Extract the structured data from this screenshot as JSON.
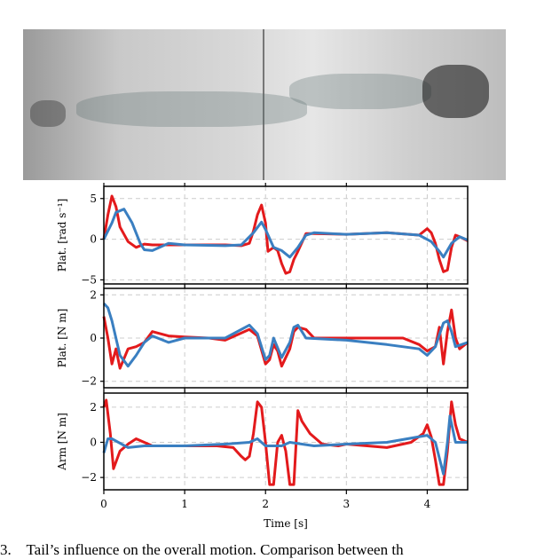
{
  "figure": {
    "photo_alt": "composite image of robot motion",
    "caption_number": "3.",
    "caption_text": "Tail’s influence on the overall motion. Comparison between th"
  },
  "colors": {
    "red": "#e31a1c",
    "blue": "#3a7fc1"
  },
  "chart_data": [
    {
      "type": "line",
      "ylabel": "Plat. [rad s⁻¹]",
      "xlim": [
        0,
        4.5
      ],
      "ylim": [
        -5.5,
        6.5
      ],
      "yticks": [
        -5,
        0,
        5
      ],
      "ytick_labels": [
        "−5",
        "0",
        "5"
      ],
      "xticks": [
        0,
        1,
        2,
        3,
        4
      ],
      "grid": true,
      "series": [
        {
          "color": "#e31a1c",
          "points": [
            [
              0,
              0
            ],
            [
              0.05,
              3
            ],
            [
              0.1,
              5.3
            ],
            [
              0.15,
              4
            ],
            [
              0.2,
              1.5
            ],
            [
              0.3,
              -0.3
            ],
            [
              0.4,
              -1
            ],
            [
              0.5,
              -0.6
            ],
            [
              0.6,
              -0.7
            ],
            [
              1,
              -0.7
            ],
            [
              1.5,
              -0.7
            ],
            [
              1.7,
              -0.8
            ],
            [
              1.8,
              -0.5
            ],
            [
              1.85,
              1
            ],
            [
              1.9,
              3
            ],
            [
              1.95,
              4.2
            ],
            [
              2.0,
              2
            ],
            [
              2.03,
              -1.5
            ],
            [
              2.1,
              -1
            ],
            [
              2.15,
              -1.4
            ],
            [
              2.2,
              -3
            ],
            [
              2.25,
              -4.2
            ],
            [
              2.3,
              -4
            ],
            [
              2.35,
              -2.5
            ],
            [
              2.4,
              -1.5
            ],
            [
              2.5,
              0.7
            ],
            [
              2.6,
              0.7
            ],
            [
              3,
              0.6
            ],
            [
              3.5,
              0.8
            ],
            [
              3.9,
              0.5
            ],
            [
              4.0,
              1.3
            ],
            [
              4.05,
              0.8
            ],
            [
              4.1,
              -0.5
            ],
            [
              4.15,
              -2.5
            ],
            [
              4.2,
              -4
            ],
            [
              4.25,
              -3.8
            ],
            [
              4.3,
              -1
            ],
            [
              4.35,
              0.5
            ],
            [
              4.4,
              0.3
            ],
            [
              4.5,
              -0.2
            ]
          ]
        },
        {
          "color": "#3a7fc1",
          "points": [
            [
              0,
              0
            ],
            [
              0.1,
              2
            ],
            [
              0.15,
              3.3
            ],
            [
              0.25,
              3.7
            ],
            [
              0.35,
              2
            ],
            [
              0.45,
              -0.5
            ],
            [
              0.5,
              -1.3
            ],
            [
              0.6,
              -1.4
            ],
            [
              0.8,
              -0.5
            ],
            [
              1,
              -0.7
            ],
            [
              1.5,
              -0.8
            ],
            [
              1.7,
              -0.7
            ],
            [
              1.85,
              0.8
            ],
            [
              1.95,
              2.1
            ],
            [
              2.0,
              1.2
            ],
            [
              2.1,
              -1
            ],
            [
              2.2,
              -1.4
            ],
            [
              2.3,
              -2.2
            ],
            [
              2.4,
              -1
            ],
            [
              2.5,
              0.5
            ],
            [
              2.6,
              0.8
            ],
            [
              3,
              0.6
            ],
            [
              3.5,
              0.8
            ],
            [
              3.9,
              0.5
            ],
            [
              4.05,
              -0.3
            ],
            [
              4.15,
              -1.5
            ],
            [
              4.2,
              -2.2
            ],
            [
              4.3,
              -0.5
            ],
            [
              4.4,
              0.3
            ],
            [
              4.5,
              -0.1
            ]
          ]
        }
      ]
    },
    {
      "type": "line",
      "ylabel": "Plat. [N m]",
      "xlim": [
        0,
        4.5
      ],
      "ylim": [
        -2.3,
        2.3
      ],
      "yticks": [
        -2,
        0,
        2
      ],
      "ytick_labels": [
        "−2",
        "0",
        "2"
      ],
      "xticks": [
        0,
        1,
        2,
        3,
        4
      ],
      "grid": true,
      "series": [
        {
          "color": "#e31a1c",
          "points": [
            [
              0,
              1
            ],
            [
              0.05,
              0
            ],
            [
              0.1,
              -1.2
            ],
            [
              0.15,
              -0.5
            ],
            [
              0.2,
              -1.4
            ],
            [
              0.3,
              -0.5
            ],
            [
              0.4,
              -0.4
            ],
            [
              0.5,
              -0.2
            ],
            [
              0.6,
              0.3
            ],
            [
              0.8,
              0.1
            ],
            [
              1,
              0.05
            ],
            [
              1.3,
              0
            ],
            [
              1.5,
              -0.1
            ],
            [
              1.8,
              0.4
            ],
            [
              1.9,
              0.1
            ],
            [
              2.0,
              -1.2
            ],
            [
              2.05,
              -1
            ],
            [
              2.1,
              -0.3
            ],
            [
              2.15,
              -0.6
            ],
            [
              2.2,
              -1.3
            ],
            [
              2.3,
              -0.5
            ],
            [
              2.35,
              0.3
            ],
            [
              2.4,
              0.5
            ],
            [
              2.5,
              0.4
            ],
            [
              2.6,
              0
            ],
            [
              3,
              0
            ],
            [
              3.5,
              0
            ],
            [
              3.7,
              0
            ],
            [
              3.9,
              -0.3
            ],
            [
              4.0,
              -0.6
            ],
            [
              4.1,
              -0.4
            ],
            [
              4.15,
              0.5
            ],
            [
              4.2,
              -1.2
            ],
            [
              4.25,
              0.3
            ],
            [
              4.3,
              1.3
            ],
            [
              4.35,
              0
            ],
            [
              4.4,
              -0.5
            ],
            [
              4.5,
              -0.2
            ]
          ]
        },
        {
          "color": "#3a7fc1",
          "points": [
            [
              0,
              1.6
            ],
            [
              0.05,
              1.4
            ],
            [
              0.1,
              0.8
            ],
            [
              0.2,
              -0.8
            ],
            [
              0.3,
              -1.3
            ],
            [
              0.4,
              -0.8
            ],
            [
              0.5,
              -0.2
            ],
            [
              0.6,
              0.1
            ],
            [
              0.8,
              -0.2
            ],
            [
              1,
              0
            ],
            [
              1.5,
              0
            ],
            [
              1.8,
              0.6
            ],
            [
              1.9,
              0.2
            ],
            [
              2.0,
              -1
            ],
            [
              2.05,
              -0.8
            ],
            [
              2.1,
              0
            ],
            [
              2.2,
              -0.9
            ],
            [
              2.3,
              -0.2
            ],
            [
              2.35,
              0.5
            ],
            [
              2.4,
              0.6
            ],
            [
              2.5,
              0
            ],
            [
              3,
              -0.1
            ],
            [
              3.5,
              -0.3
            ],
            [
              3.9,
              -0.5
            ],
            [
              4.0,
              -0.8
            ],
            [
              4.1,
              -0.4
            ],
            [
              4.2,
              0.7
            ],
            [
              4.25,
              0.8
            ],
            [
              4.3,
              0.3
            ],
            [
              4.35,
              -0.4
            ],
            [
              4.5,
              -0.2
            ]
          ]
        }
      ]
    },
    {
      "type": "line",
      "ylabel": "Arm [N m]",
      "xlabel": "Time [s]",
      "xlim": [
        0,
        4.5
      ],
      "ylim": [
        -2.7,
        2.8
      ],
      "yticks": [
        -2,
        0,
        2
      ],
      "ytick_labels": [
        "−2",
        "0",
        "2"
      ],
      "xticks": [
        0,
        1,
        2,
        3,
        4
      ],
      "xtick_labels": [
        "0",
        "1",
        "2",
        "3",
        "4"
      ],
      "grid": true,
      "series": [
        {
          "color": "#e31a1c",
          "points": [
            [
              0,
              2
            ],
            [
              0.03,
              2.4
            ],
            [
              0.08,
              0.5
            ],
            [
              0.12,
              -1.5
            ],
            [
              0.2,
              -0.5
            ],
            [
              0.3,
              -0.1
            ],
            [
              0.4,
              0.2
            ],
            [
              0.6,
              -0.2
            ],
            [
              1,
              -0.2
            ],
            [
              1.4,
              -0.2
            ],
            [
              1.6,
              -0.3
            ],
            [
              1.7,
              -0.8
            ],
            [
              1.75,
              -1
            ],
            [
              1.8,
              -0.8
            ],
            [
              1.85,
              0.5
            ],
            [
              1.9,
              2.3
            ],
            [
              1.95,
              2
            ],
            [
              2.0,
              0
            ],
            [
              2.05,
              -2.4
            ],
            [
              2.1,
              -2.4
            ],
            [
              2.15,
              0
            ],
            [
              2.2,
              0.4
            ],
            [
              2.25,
              -0.5
            ],
            [
              2.3,
              -2.4
            ],
            [
              2.35,
              -2.4
            ],
            [
              2.4,
              1.8
            ],
            [
              2.45,
              1.2
            ],
            [
              2.55,
              0.5
            ],
            [
              2.7,
              -0.1
            ],
            [
              2.9,
              -0.2
            ],
            [
              3,
              -0.1
            ],
            [
              3.5,
              -0.3
            ],
            [
              3.8,
              0
            ],
            [
              3.95,
              0.5
            ],
            [
              4.0,
              1
            ],
            [
              4.05,
              0.3
            ],
            [
              4.1,
              -1
            ],
            [
              4.15,
              -2.4
            ],
            [
              4.2,
              -2.4
            ],
            [
              4.25,
              -0.5
            ],
            [
              4.3,
              2.3
            ],
            [
              4.35,
              1
            ],
            [
              4.4,
              0.2
            ],
            [
              4.5,
              0
            ]
          ]
        },
        {
          "color": "#3a7fc1",
          "points": [
            [
              0,
              -0.6
            ],
            [
              0.05,
              0.2
            ],
            [
              0.1,
              0.2
            ],
            [
              0.3,
              -0.3
            ],
            [
              0.5,
              -0.2
            ],
            [
              1,
              -0.2
            ],
            [
              1.5,
              -0.1
            ],
            [
              1.8,
              0
            ],
            [
              1.9,
              0.2
            ],
            [
              2.0,
              -0.2
            ],
            [
              2.2,
              -0.2
            ],
            [
              2.3,
              0
            ],
            [
              2.6,
              -0.2
            ],
            [
              3,
              -0.1
            ],
            [
              3.5,
              0
            ],
            [
              4.0,
              0.4
            ],
            [
              4.1,
              0
            ],
            [
              4.2,
              -1.8
            ],
            [
              4.25,
              0
            ],
            [
              4.28,
              1.5
            ],
            [
              4.35,
              0
            ],
            [
              4.5,
              0
            ]
          ]
        }
      ]
    }
  ]
}
